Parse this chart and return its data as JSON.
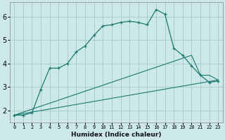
{
  "xlabel": "Humidex (Indice chaleur)",
  "background_color": "#cce8e8",
  "grid_color": "#aacccc",
  "line_color": "#1a7a6e",
  "xlim": [
    -0.5,
    23.5
  ],
  "ylim": [
    1.5,
    6.6
  ],
  "yticks": [
    2,
    3,
    4,
    5,
    6
  ],
  "xtick_labels": [
    "0",
    "1",
    "2",
    "3",
    "4",
    "5",
    "6",
    "7",
    "8",
    "9",
    "10",
    "11",
    "12",
    "13",
    "14",
    "15",
    "16",
    "17",
    "18",
    "19",
    "20",
    "21",
    "22",
    "23"
  ],
  "curve1_x": [
    0,
    1,
    2,
    3,
    4,
    5,
    6,
    7,
    8,
    9,
    10,
    11,
    12,
    13,
    14,
    15,
    16,
    17,
    18,
    19,
    20,
    21,
    22,
    23
  ],
  "curve1_y": [
    1.8,
    1.8,
    1.9,
    2.9,
    3.8,
    3.8,
    4.0,
    4.5,
    4.75,
    5.2,
    5.6,
    5.65,
    5.75,
    5.8,
    5.75,
    5.65,
    6.3,
    6.1,
    4.65,
    4.35,
    3.9,
    3.5,
    3.2,
    3.25
  ],
  "curve2_x": [
    0,
    23
  ],
  "curve2_y": [
    1.8,
    3.3
  ],
  "curve3_x": [
    0,
    20,
    21,
    22,
    23
  ],
  "curve3_y": [
    1.8,
    4.35,
    3.5,
    3.5,
    3.3
  ]
}
